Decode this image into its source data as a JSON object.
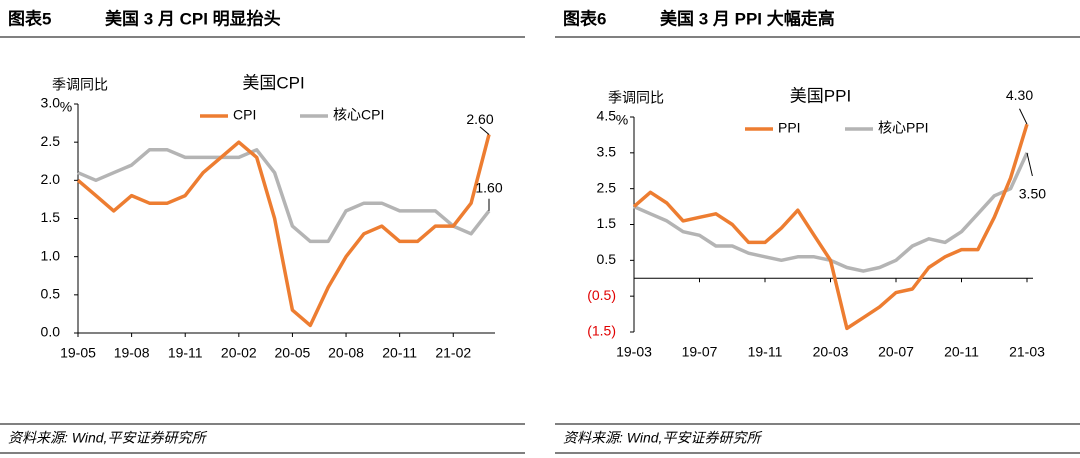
{
  "chart_data": [
    {
      "type": "line",
      "figure_label": "图表5",
      "heading": "美国 3 月 CPI 明显抬头",
      "title": "美国CPI",
      "ylabel": "季调同比",
      "yunit": "%",
      "categories": [
        "19-05",
        null,
        null,
        "19-08",
        null,
        null,
        "19-11",
        null,
        null,
        "20-02",
        null,
        null,
        "20-05",
        null,
        null,
        "20-08",
        null,
        null,
        "20-11",
        null,
        null,
        "21-02",
        null,
        null
      ],
      "series": [
        {
          "name": "CPI",
          "color": "#ed7d31",
          "values": [
            2.0,
            1.8,
            1.6,
            1.8,
            1.7,
            1.7,
            1.8,
            2.1,
            2.3,
            2.5,
            2.3,
            1.5,
            0.3,
            0.1,
            0.6,
            1.0,
            1.3,
            1.4,
            1.2,
            1.2,
            1.4,
            1.4,
            1.7,
            2.6
          ]
        },
        {
          "name": "核心CPI",
          "color": "#b4b4b4",
          "values": [
            2.1,
            2.0,
            2.1,
            2.2,
            2.4,
            2.4,
            2.3,
            2.3,
            2.3,
            2.3,
            2.4,
            2.1,
            1.4,
            1.2,
            1.2,
            1.6,
            1.7,
            1.7,
            1.6,
            1.6,
            1.6,
            1.4,
            1.3,
            1.6
          ]
        }
      ],
      "annotations": [
        "2.60",
        "1.60"
      ],
      "ylim": [
        0,
        3
      ],
      "yticks": [
        {
          "value": 0,
          "label": "0.0"
        },
        0.5,
        {
          "value": 1,
          "label": "1.0"
        },
        1.5,
        {
          "value": 2,
          "label": "2.0"
        },
        2.5,
        {
          "value": 3,
          "label": "3.0"
        }
      ],
      "grid": false,
      "source": "资料来源: Wind,平安证券研究所"
    },
    {
      "type": "line",
      "figure_label": "图表6",
      "heading": "美国 3 月 PPI 大幅走高",
      "title": "美国PPI",
      "ylabel": "季调同比",
      "yunit": "%",
      "categories": [
        "19-03",
        null,
        null,
        null,
        "19-07",
        null,
        null,
        null,
        "19-11",
        null,
        null,
        null,
        "20-03",
        null,
        null,
        null,
        "20-07",
        null,
        null,
        null,
        "20-11",
        null,
        null,
        null,
        "21-03"
      ],
      "series": [
        {
          "name": "PPI",
          "color": "#ed7d31",
          "values": [
            2.0,
            2.4,
            2.1,
            1.6,
            1.7,
            1.8,
            1.5,
            1.0,
            1.0,
            1.4,
            1.9,
            1.2,
            0.5,
            -1.4,
            -1.1,
            -0.8,
            -0.4,
            -0.3,
            0.3,
            0.6,
            0.8,
            0.8,
            1.7,
            2.8,
            4.3
          ]
        },
        {
          "name": "核心PPI",
          "color": "#b4b4b4",
          "values": [
            2.0,
            1.8,
            1.6,
            1.3,
            1.2,
            0.9,
            0.9,
            0.7,
            0.6,
            0.5,
            0.6,
            0.6,
            0.5,
            0.3,
            0.2,
            0.3,
            0.5,
            0.9,
            1.1,
            1.0,
            1.3,
            1.8,
            2.3,
            2.5,
            3.5
          ]
        }
      ],
      "annotations": [
        "4.30",
        "3.50"
      ],
      "ylim": [
        -1.5,
        4.5
      ],
      "yticks": [
        {
          "value": -1.5,
          "label": "(1.5)"
        },
        {
          "value": -0.5,
          "label": "(0.5)"
        },
        0.5,
        1.5,
        2.5,
        3.5,
        4.5
      ],
      "grid": false,
      "source": "资料来源: Wind,平安证券研究所"
    }
  ]
}
